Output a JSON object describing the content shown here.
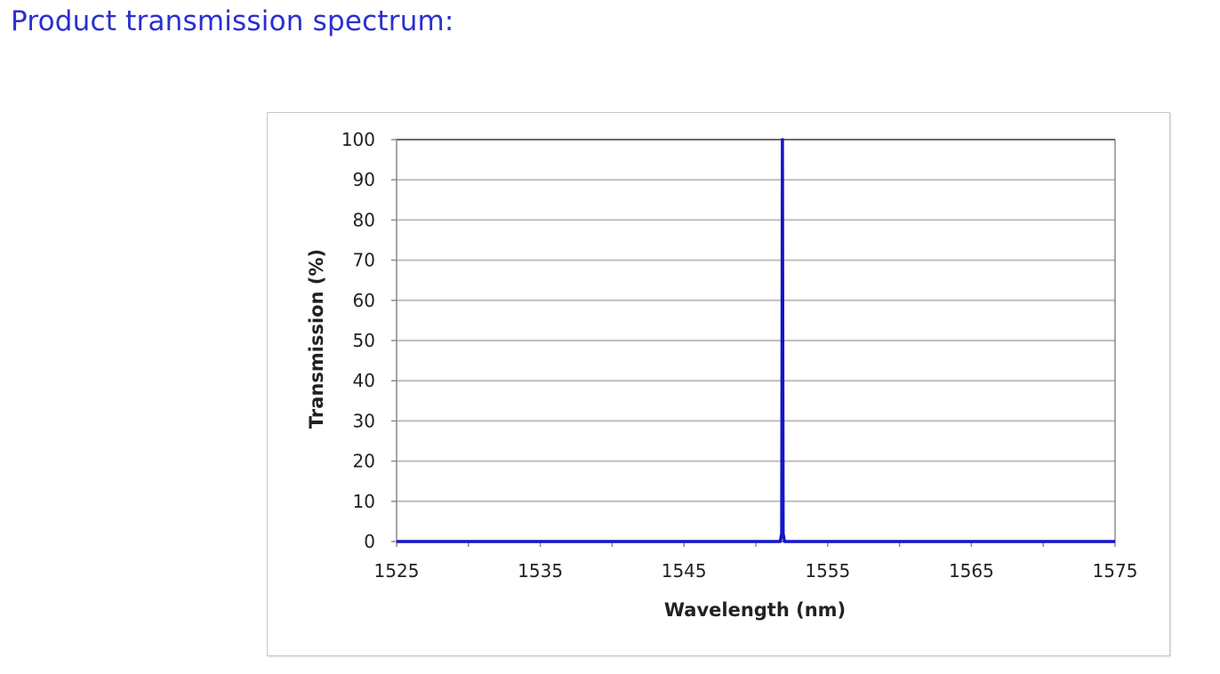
{
  "heading": "Product transmission spectrum:",
  "chart_data": {
    "type": "line",
    "title": "",
    "xlabel": "Wavelength (nm)",
    "ylabel": "Transmission (%)",
    "xlim": [
      1525,
      1575
    ],
    "ylim": [
      0,
      100
    ],
    "x_ticks": [
      1525,
      1535,
      1545,
      1555,
      1565,
      1575
    ],
    "y_ticks": [
      0,
      10,
      20,
      30,
      40,
      50,
      60,
      70,
      80,
      90,
      100
    ],
    "grid": "horizontal",
    "legend": "none",
    "color": "#1414c8",
    "series": [
      {
        "x": [
          1525,
          1551.7,
          1551.8,
          1551.85,
          1551.9,
          1552.0,
          1575
        ],
        "y": [
          0,
          0,
          2,
          100,
          2,
          0,
          0
        ]
      }
    ]
  }
}
